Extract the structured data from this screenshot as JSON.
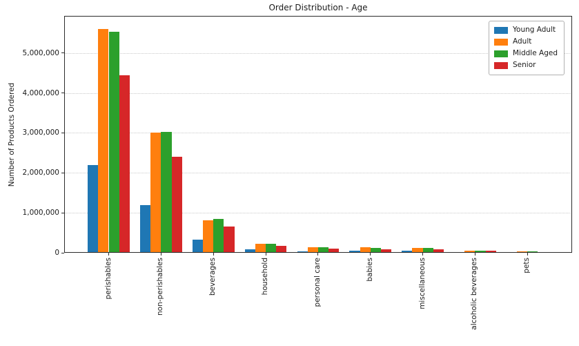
{
  "chart_data": {
    "type": "bar",
    "title": "Order Distribution - Age",
    "xlabel": "",
    "ylabel": "Number of Products Ordered",
    "categories": [
      "perishables",
      "non-perishables",
      "beverages",
      "household",
      "personal care",
      "babies",
      "miscellaneous",
      "alcoholic beverages",
      "pets"
    ],
    "series": [
      {
        "name": "Young Adult",
        "color": "#1f77b4",
        "values": [
          2200000,
          1200000,
          320000,
          90000,
          40000,
          60000,
          55000,
          25000,
          10000
        ]
      },
      {
        "name": "Adult",
        "color": "#ff7f0e",
        "values": [
          5600000,
          3010000,
          820000,
          220000,
          130000,
          130000,
          120000,
          60000,
          35000
        ]
      },
      {
        "name": "Middle Aged",
        "color": "#2ca02c",
        "values": [
          5530000,
          3020000,
          840000,
          230000,
          135000,
          125000,
          120000,
          60000,
          35000
        ]
      },
      {
        "name": "Senior",
        "color": "#d62728",
        "values": [
          4450000,
          2400000,
          660000,
          175000,
          100000,
          90000,
          90000,
          45000,
          25000
        ]
      }
    ],
    "yticks": [
      {
        "value": 0,
        "label": "0"
      },
      {
        "value": 1000000,
        "label": "1,000,000"
      },
      {
        "value": 2000000,
        "label": "2,000,000"
      },
      {
        "value": 3000000,
        "label": "3,000,000"
      },
      {
        "value": 4000000,
        "label": "4,000,000"
      },
      {
        "value": 5000000,
        "label": "5,000,000"
      }
    ],
    "ylim": [
      0,
      5930000
    ],
    "grid": "horizontal-dotted",
    "legend_position": "upper-right"
  }
}
